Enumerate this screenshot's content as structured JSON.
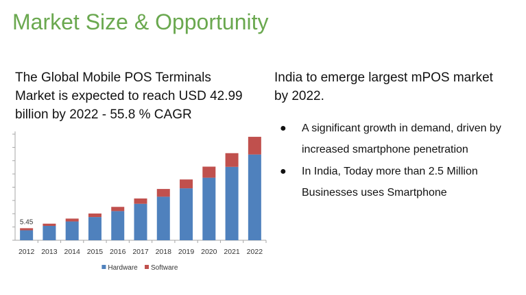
{
  "slide": {
    "title": "Market Size & Opportunity"
  },
  "left": {
    "lines": [
      "The Global Mobile POS Terminals",
      "Market is expected to reach USD 42.99",
      "billion by 2022 - 55.8 % CAGR"
    ]
  },
  "right": {
    "lines": [
      "India to emerge largest mPOS market",
      "by 2022."
    ],
    "bullets": [
      "A significant growth in demand, driven by increased smartphone penetration",
      "In India, Today more than 2.5 Million Businesses uses Smartphone"
    ]
  },
  "colors": {
    "title": "#6aa84f",
    "hardware": "#4f81bd",
    "software": "#c0504d",
    "axis": "#a6a6a6"
  },
  "chart_data": {
    "type": "bar",
    "stacked": true,
    "categories": [
      "2012",
      "2013",
      "2014",
      "2015",
      "2016",
      "2017",
      "2018",
      "2019",
      "2020",
      "2021",
      "2022"
    ],
    "series": [
      {
        "name": "Hardware",
        "values": [
          4.5,
          6.5,
          8.5,
          10.5,
          13.2,
          16.5,
          19.7,
          23.5,
          28.3,
          33.2,
          38.8
        ]
      },
      {
        "name": "Software",
        "values": [
          0.95,
          1.0,
          1.3,
          1.6,
          1.9,
          2.4,
          3.5,
          4.0,
          5.0,
          6.2,
          8.0
        ]
      }
    ],
    "data_labels": [
      {
        "category": "2012",
        "text": "5.45"
      }
    ],
    "legend": [
      "Hardware",
      "Software"
    ],
    "legend_position": "bottom",
    "ylim": [
      0,
      48
    ],
    "grid": false,
    "y_ticks_labeled": false
  }
}
